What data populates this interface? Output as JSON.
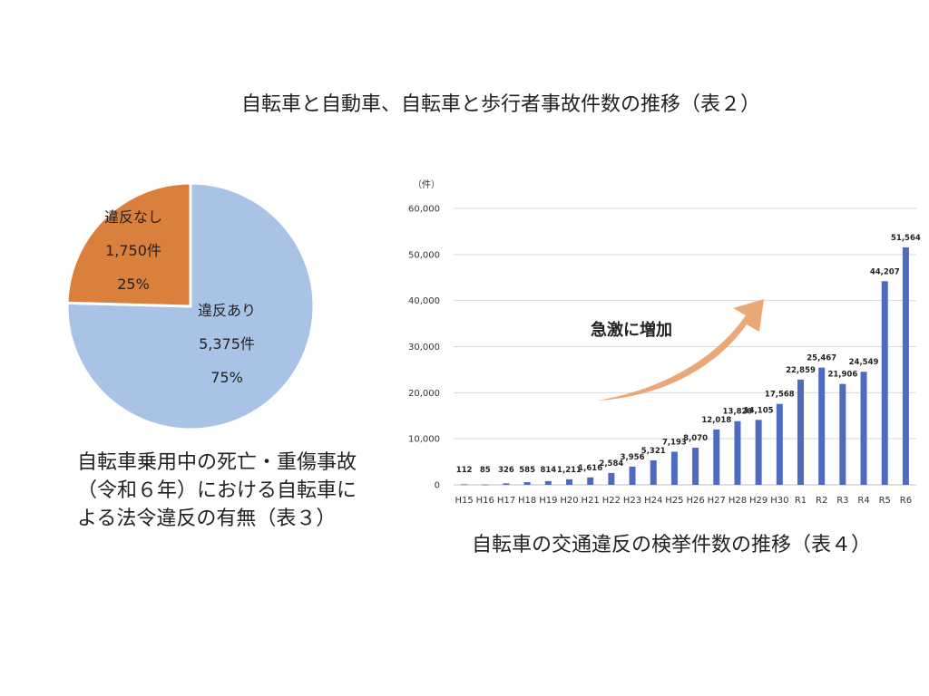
{
  "title": "自転車と自動車、自転車と歩行者事故件数の推移（表２）",
  "colors": {
    "pie_violation": "#a9c3e6",
    "pie_no_violation": "#d9803c",
    "bar": "#4f6bbf",
    "arrow": "#e8a877",
    "grid": "#d9d9d9"
  },
  "chart_data": [
    {
      "type": "pie",
      "caption": "自転車乗用中の死亡・重傷事故（令和６年）における自転車による法令違反の有無（表３）",
      "slices": [
        {
          "label": "違反あり",
          "count_label": "5,375件",
          "percent_label": "75%",
          "value": 5375,
          "percent": 75
        },
        {
          "label": "違反なし",
          "count_label": "1,750件",
          "percent_label": "25%",
          "value": 1750,
          "percent": 25
        }
      ]
    },
    {
      "type": "bar",
      "caption": "自転車の交通違反の検挙件数の推移（表４）",
      "unit_label": "（件）",
      "annotation": "急激に増加",
      "ylim": [
        0,
        60000
      ],
      "yticks": [
        0,
        10000,
        20000,
        30000,
        40000,
        50000,
        60000
      ],
      "ytick_labels": [
        "0",
        "10,000",
        "20,000",
        "30,000",
        "40,000",
        "50,000",
        "60,000"
      ],
      "grid": true,
      "categories": [
        "H15",
        "H16",
        "H17",
        "H18",
        "H19",
        "H20",
        "H21",
        "H22",
        "H23",
        "H24",
        "H25",
        "H26",
        "H27",
        "H28",
        "H29",
        "H30",
        "R1",
        "R2",
        "R3",
        "R4",
        "R5",
        "R6"
      ],
      "values": [
        112,
        85,
        326,
        585,
        814,
        1211,
        1616,
        2584,
        3956,
        5321,
        7193,
        8070,
        12018,
        13820,
        14105,
        17568,
        22859,
        25467,
        21906,
        24549,
        44207,
        51564
      ],
      "value_labels": [
        "112",
        "85",
        "326",
        "585",
        "814",
        "1,211",
        "1,616",
        "2,584",
        "3,956",
        "5,321",
        "7,193",
        "8,070",
        "12,018",
        "13,820",
        "14,105",
        "17,568",
        "22,859",
        "25,467",
        "21,906",
        "24,549",
        "44,207",
        "51,564"
      ]
    }
  ]
}
